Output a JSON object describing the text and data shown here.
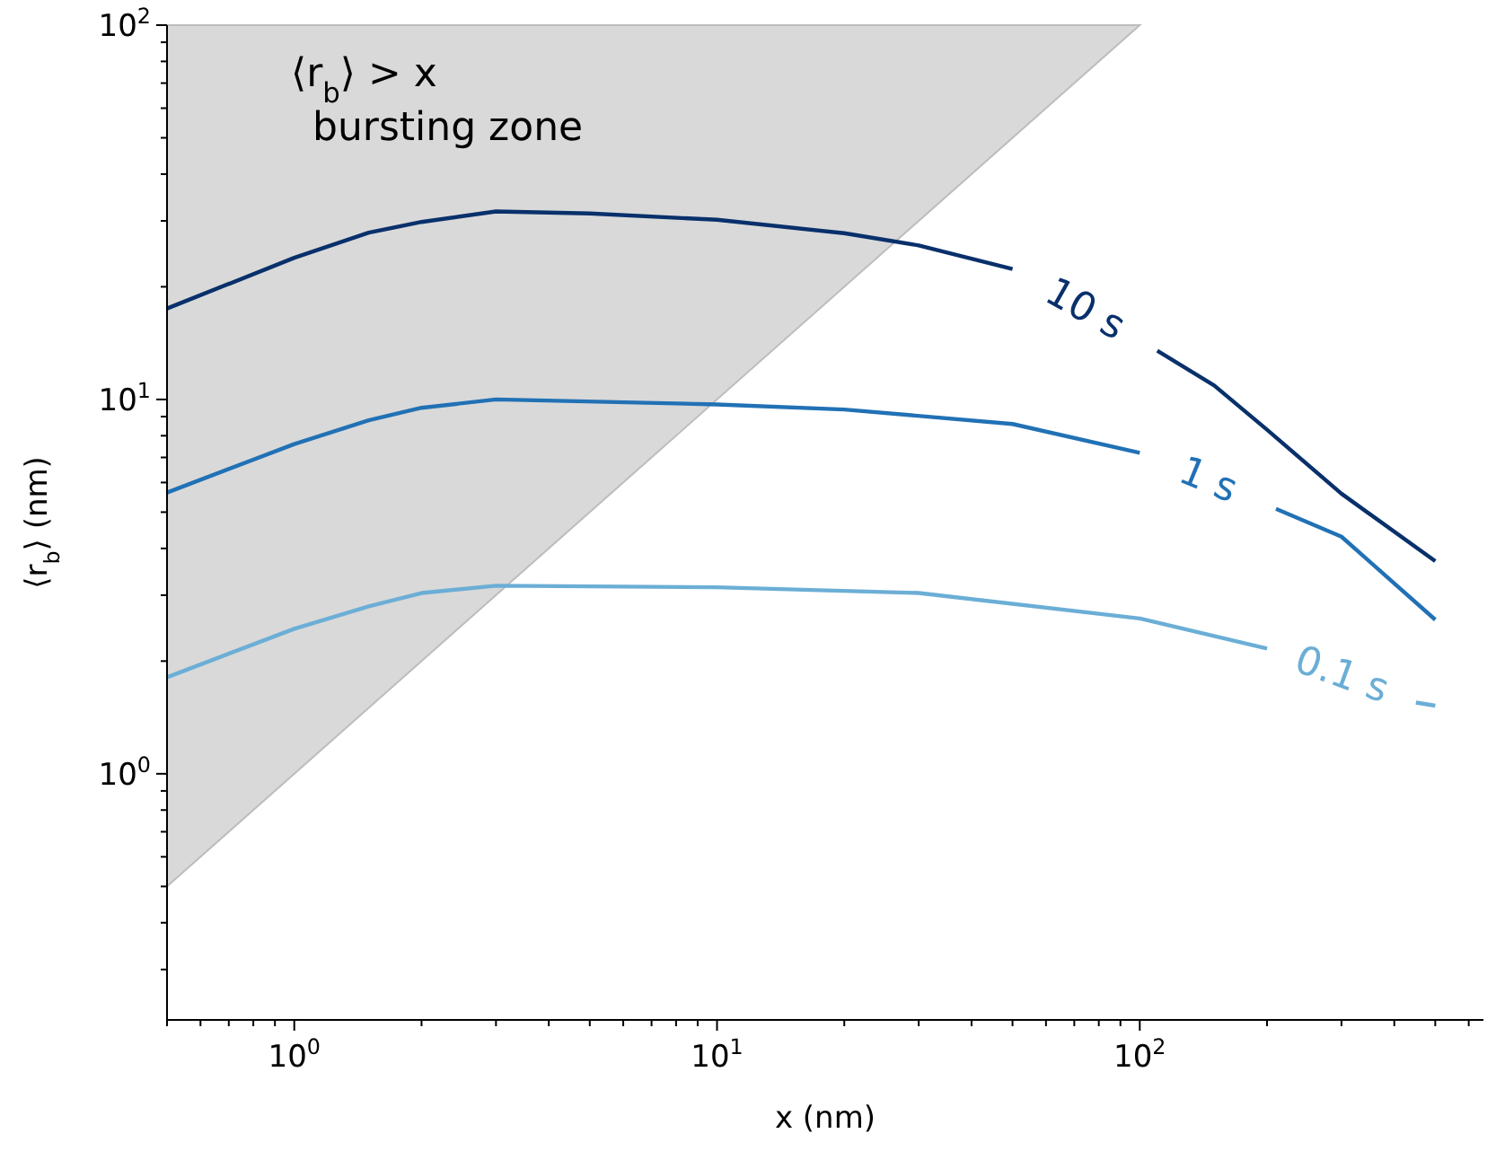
{
  "chart_data": {
    "type": "line",
    "xlabel": "x (nm)",
    "ylabel": "⟨r$_{b}$⟩ (nm)",
    "log": "xy",
    "grid": false,
    "legend": false,
    "xlim": [
      0.5,
      650
    ],
    "ylim": [
      0.22,
      100
    ],
    "xticks": [
      {
        "value": 0.5,
        "label": null
      },
      {
        "value": 0.6,
        "label": null
      },
      {
        "value": 0.7,
        "label": null
      },
      {
        "value": 0.8,
        "label": null
      },
      {
        "value": 0.9,
        "label": null
      },
      {
        "value": 1,
        "label": "10$^{0}$"
      },
      {
        "value": 2,
        "label": null
      },
      {
        "value": 3,
        "label": null
      },
      {
        "value": 4,
        "label": null
      },
      {
        "value": 5,
        "label": null
      },
      {
        "value": 6,
        "label": null
      },
      {
        "value": 7,
        "label": null
      },
      {
        "value": 8,
        "label": null
      },
      {
        "value": 9,
        "label": null
      },
      {
        "value": 10,
        "label": "10$^{1}$"
      },
      {
        "value": 20,
        "label": null
      },
      {
        "value": 30,
        "label": null
      },
      {
        "value": 40,
        "label": null
      },
      {
        "value": 50,
        "label": null
      },
      {
        "value": 60,
        "label": null
      },
      {
        "value": 70,
        "label": null
      },
      {
        "value": 80,
        "label": null
      },
      {
        "value": 90,
        "label": null
      },
      {
        "value": 100,
        "label": "10$^{2}$"
      },
      {
        "value": 200,
        "label": null
      },
      {
        "value": 300,
        "label": null
      },
      {
        "value": 400,
        "label": null
      },
      {
        "value": 500,
        "label": null
      },
      {
        "value": 600,
        "label": null
      }
    ],
    "yticks": [
      {
        "value": 0.3,
        "label": null
      },
      {
        "value": 0.4,
        "label": null
      },
      {
        "value": 0.5,
        "label": null
      },
      {
        "value": 0.6,
        "label": null
      },
      {
        "value": 0.7,
        "label": null
      },
      {
        "value": 0.8,
        "label": null
      },
      {
        "value": 0.9,
        "label": null
      },
      {
        "value": 1,
        "label": "10$^{0}$"
      },
      {
        "value": 2,
        "label": null
      },
      {
        "value": 3,
        "label": null
      },
      {
        "value": 4,
        "label": null
      },
      {
        "value": 5,
        "label": null
      },
      {
        "value": 6,
        "label": null
      },
      {
        "value": 7,
        "label": null
      },
      {
        "value": 8,
        "label": null
      },
      {
        "value": 9,
        "label": null
      },
      {
        "value": 10,
        "label": "10$^{1}$"
      },
      {
        "value": 20,
        "label": null
      },
      {
        "value": 30,
        "label": null
      },
      {
        "value": 40,
        "label": null
      },
      {
        "value": 50,
        "label": null
      },
      {
        "value": 60,
        "label": null
      },
      {
        "value": 70,
        "label": null
      },
      {
        "value": 80,
        "label": null
      },
      {
        "value": 90,
        "label": null
      },
      {
        "value": 100,
        "label": "10$^{2}$"
      }
    ],
    "annotations": [
      "⟨r$_{b}$⟩ > x",
      "bursting zone"
    ],
    "series": [
      {
        "type": "area",
        "color": "#d9d9d9",
        "x": [
          0.5,
          100
        ],
        "values": [
          0.5,
          100
        ]
      },
      {
        "name": "10 s",
        "color": "#08306b",
        "x": [
          0.5,
          1,
          1.5,
          2,
          3,
          5,
          10,
          20,
          30,
          50,
          75,
          110,
          150,
          200,
          300,
          500
        ],
        "values": [
          17.5,
          23.9,
          27.9,
          29.8,
          31.8,
          31.4,
          30.2,
          27.8,
          25.8,
          22.3,
          null,
          13.5,
          10.9,
          8.3,
          5.6,
          3.7
        ]
      },
      {
        "name": "1 s",
        "color": "#2171b5",
        "x": [
          0.5,
          1,
          1.5,
          2,
          3,
          10,
          20,
          50,
          100,
          150,
          210,
          300,
          500
        ],
        "values": [
          5.64,
          7.6,
          8.8,
          9.5,
          10,
          9.7,
          9.4,
          8.6,
          7.2,
          null,
          5.1,
          4.3,
          2.58
        ]
      },
      {
        "name": "0.1 s",
        "color": "#6baed6",
        "x": [
          0.5,
          1,
          1.5,
          2,
          3,
          10,
          30,
          100,
          200,
          300,
          450,
          500
        ],
        "values": [
          1.81,
          2.44,
          2.8,
          3.04,
          3.18,
          3.15,
          3.04,
          2.6,
          2.16,
          null,
          1.55,
          1.52
        ]
      }
    ]
  }
}
